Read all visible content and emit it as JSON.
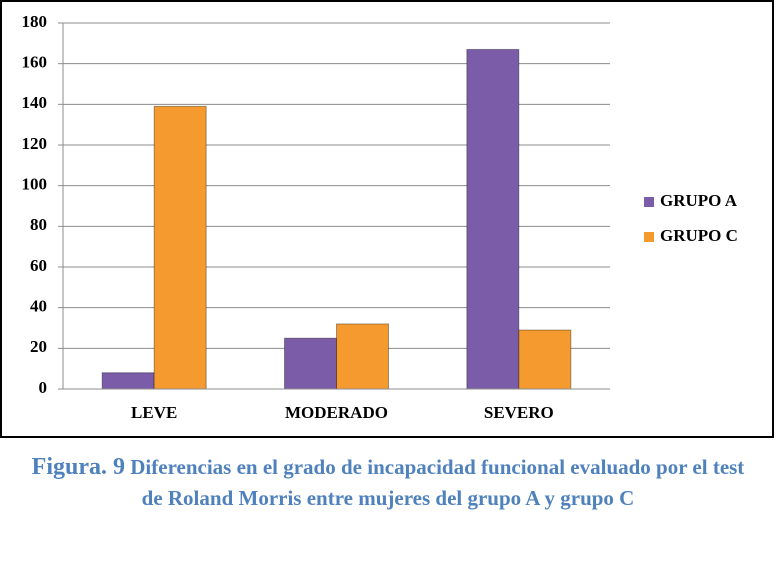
{
  "chart_data": {
    "type": "bar",
    "categories": [
      "LEVE",
      "MODERADO",
      "SEVERO"
    ],
    "series": [
      {
        "name": "GRUPO A",
        "color": "#7a5ca8",
        "values": [
          8,
          25,
          167
        ]
      },
      {
        "name": "GRUPO C",
        "color": "#f49a2e",
        "values": [
          139,
          32,
          29
        ]
      }
    ],
    "ylim": [
      0,
      180
    ],
    "yticks": [
      0,
      20,
      40,
      60,
      80,
      100,
      120,
      140,
      160,
      180
    ],
    "grid": true,
    "legend": "right",
    "figure_label": "Figura. 9",
    "caption": "Diferencias en el grado de incapacidad funcional evaluado por el test de Roland Morris entre mujeres del grupo A y grupo C"
  }
}
